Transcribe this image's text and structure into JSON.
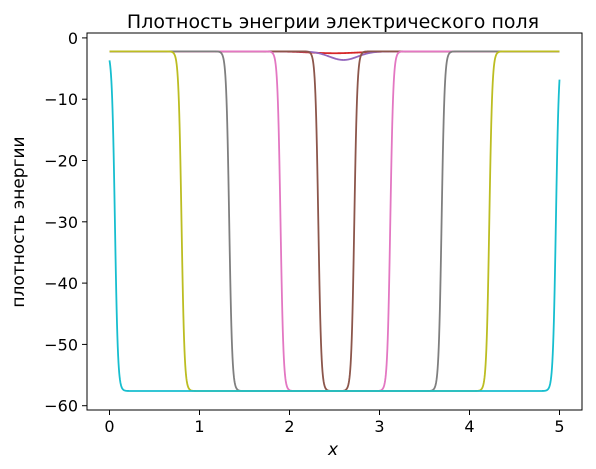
{
  "chart_data": {
    "type": "line",
    "title": "Плотность энегрии электрического поля",
    "xlabel": "x",
    "ylabel": "плотность энергии",
    "xlim": [
      -0.25,
      5.25
    ],
    "ylim": [
      -60.7,
      0.8
    ],
    "x_ticks": [
      0,
      1,
      2,
      3,
      4,
      5
    ],
    "y_ticks": [
      0,
      -10,
      -20,
      -30,
      -40,
      -50,
      -60
    ],
    "x_tick_labels": [
      "0",
      "1",
      "2",
      "3",
      "4",
      "5"
    ],
    "y_tick_labels": [
      "0",
      "−10",
      "−20",
      "−30",
      "−40",
      "−50",
      "−60"
    ],
    "grid": false,
    "baseline": -2.2,
    "bottom": -57.6,
    "series": [
      {
        "color": "#d62728",
        "kind": "bump",
        "center": 2.5,
        "depth": -2.5,
        "width": 0.6
      },
      {
        "color": "#9467bd",
        "kind": "bump",
        "center": 2.6,
        "depth": -3.6,
        "width": 0.35
      },
      {
        "color": "#8c564b",
        "kind": "well",
        "left": 2.32,
        "right": 2.72
      },
      {
        "color": "#e377c2",
        "kind": "well",
        "left": 1.9,
        "right": 3.12
      },
      {
        "color": "#7f7f7f",
        "kind": "well",
        "left": 1.33,
        "right": 3.69
      },
      {
        "color": "#bcbd22",
        "kind": "well",
        "left": 0.8,
        "right": 4.22
      },
      {
        "color": "#17becf",
        "kind": "well",
        "left": 0.06,
        "right": 4.96
      }
    ]
  }
}
